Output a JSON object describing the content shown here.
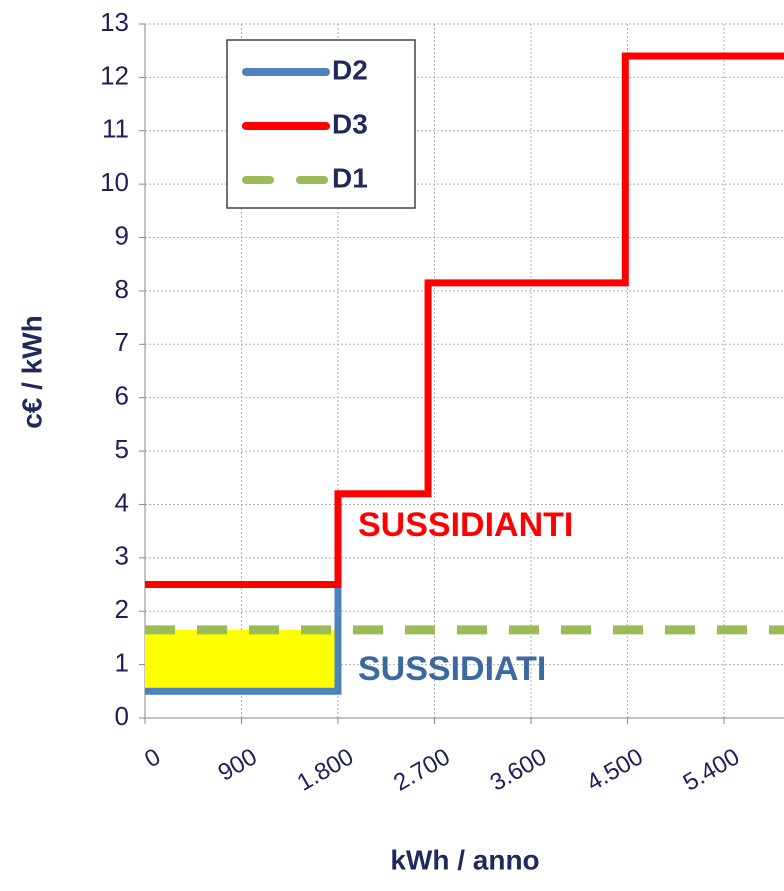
{
  "chart_data": {
    "type": "step",
    "xlabel": "kWh / anno",
    "ylabel": "c€ / kWh",
    "xlim": [
      0,
      5960
    ],
    "ylim": [
      0,
      13
    ],
    "xticks": [
      0,
      900,
      {
        "value": 1800,
        "label": "1.800"
      },
      {
        "value": 2700,
        "label": "2.700"
      },
      {
        "value": 3600,
        "label": "3.600"
      },
      {
        "value": 4500,
        "label": "4.500"
      },
      {
        "value": 5400,
        "label": "5.400"
      }
    ],
    "yticks": [
      0,
      1,
      2,
      3,
      4,
      5,
      6,
      7,
      8,
      9,
      10,
      11,
      12,
      13
    ],
    "grid": true,
    "highlight": {
      "x": [
        0,
        1800
      ],
      "y": [
        0.5,
        1.65
      ],
      "color": "#ffff00"
    },
    "series": [
      {
        "name": "D2",
        "color": "#4f81bd",
        "x": [
          0,
          1800,
          1800
        ],
        "values": [
          0.5,
          0.5,
          2.45
        ]
      },
      {
        "name": "D3",
        "color": "#ff0000",
        "x": [
          0,
          1800,
          1800,
          2640,
          2640,
          4480,
          4480,
          5960
        ],
        "values": [
          2.5,
          2.5,
          4.2,
          4.2,
          8.15,
          8.15,
          12.4,
          12.4
        ]
      },
      {
        "name": "D1",
        "color": "#9bbb59",
        "dashed": true,
        "x": [
          0,
          5960
        ],
        "values": [
          1.65,
          1.65
        ]
      }
    ],
    "annotations": [
      {
        "text": "SUSSIDIANTI",
        "color": "#ff0000"
      },
      {
        "text": "SUSSIDIATI",
        "color": "#3b6aa0"
      }
    ],
    "legend": "top-left"
  }
}
